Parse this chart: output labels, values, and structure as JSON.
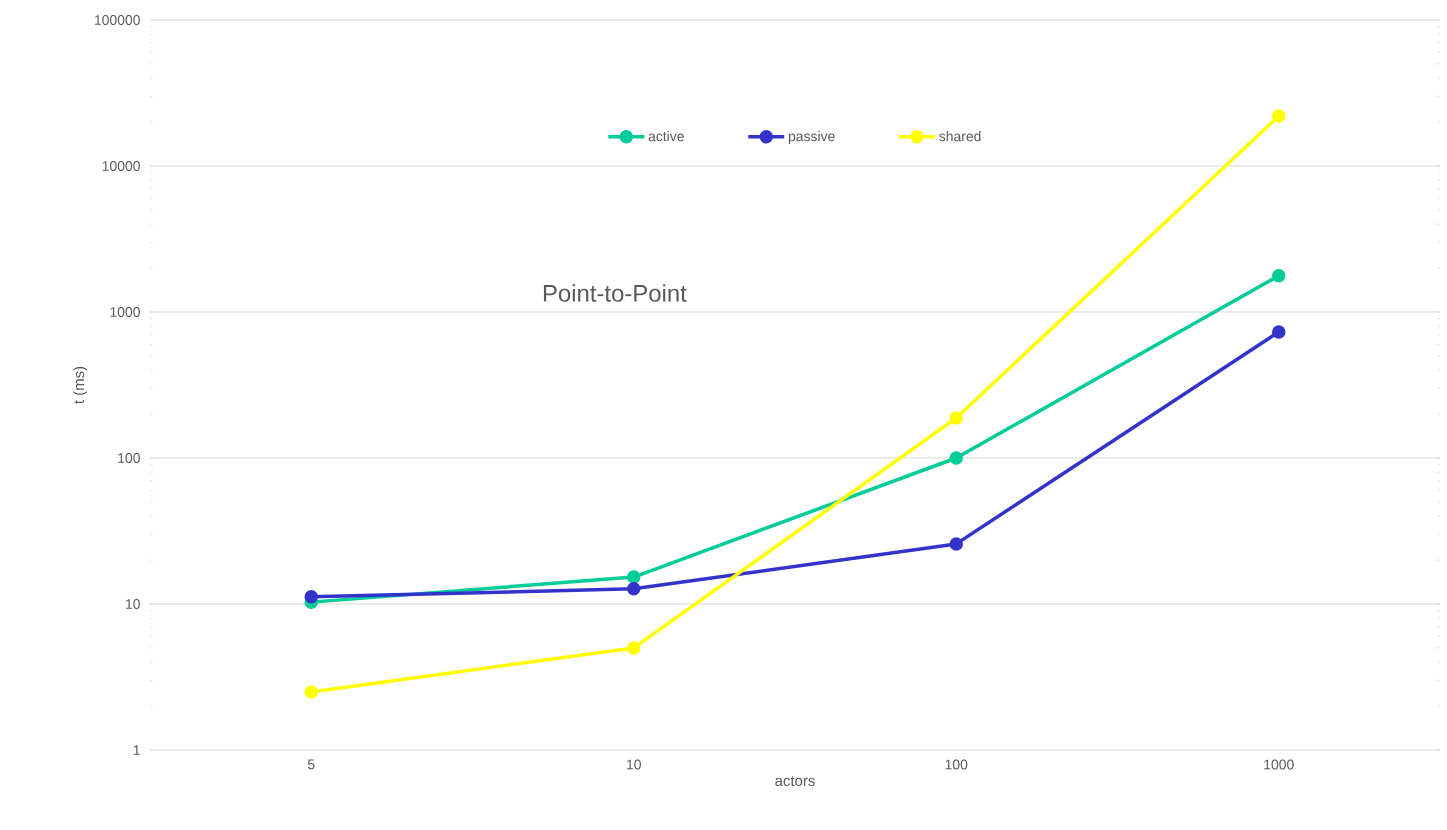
{
  "chart_data": {
    "type": "line",
    "title": "Point-to-Point",
    "xlabel": "actors",
    "ylabel": "t (ms)",
    "categories": [
      "5",
      "10",
      "100",
      "1000"
    ],
    "series": [
      {
        "name": "active",
        "color": "#00cc99",
        "values": [
          10.3,
          15.3,
          100,
          1770
        ]
      },
      {
        "name": "passive",
        "color": "#3333cc",
        "values": [
          11.2,
          12.7,
          25.8,
          730
        ]
      },
      {
        "name": "shared",
        "color": "#ffff00",
        "values": [
          2.5,
          5.0,
          188,
          22000
        ]
      }
    ],
    "log": "y",
    "ylim": [
      1,
      100000
    ],
    "yticks": [
      1,
      10,
      100,
      1000,
      10000,
      100000
    ],
    "grid": "y",
    "legend": "top",
    "marker": "circle",
    "line_style": "solid"
  }
}
